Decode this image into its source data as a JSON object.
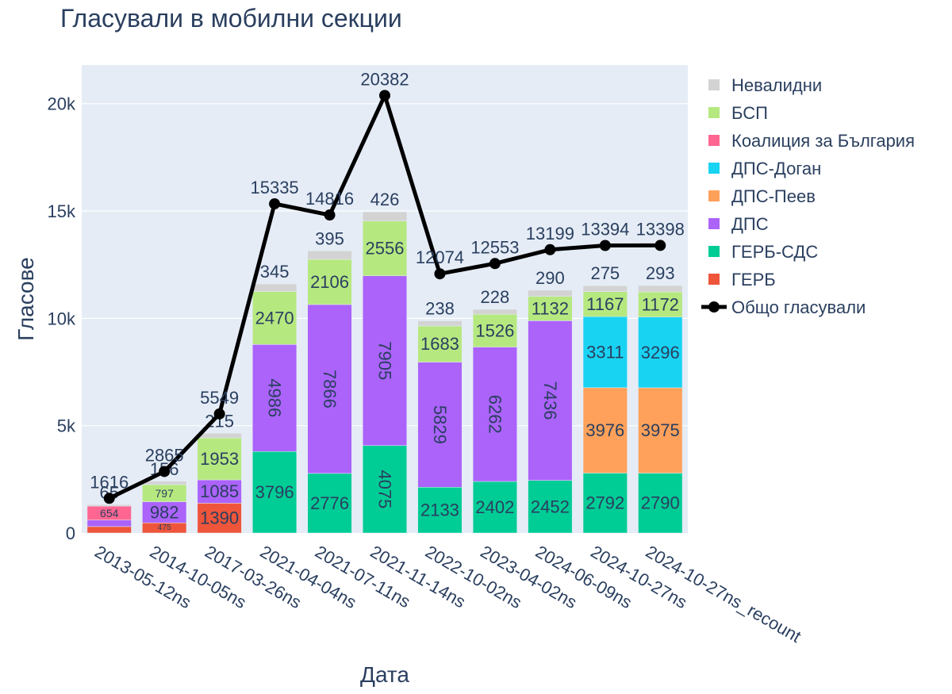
{
  "chart_data": {
    "type": "bar",
    "barmode": "stack",
    "title": "Гласували в мобилни секции",
    "xlabel": "Дата",
    "ylabel": "Гласове",
    "ylim": [
      0,
      21800
    ],
    "yticks": [
      0,
      5000,
      10000,
      15000,
      20000
    ],
    "ytick_labels": [
      "0",
      "5k",
      "10k",
      "15k",
      "20k"
    ],
    "grid": true,
    "legend_position": "right",
    "categories": [
      "2013-05-12ns",
      "2014-10-05ns",
      "2017-03-26ns",
      "2021-04-04ns",
      "2021-07-11ns",
      "2021-11-14ns",
      "2022-10-02ns",
      "2023-04-02ns",
      "2024-06-09ns",
      "2024-10-27ns",
      "2024-10-27ns_recount"
    ],
    "series": [
      {
        "name": "ГЕРБ",
        "color": "#ef553b",
        "values": [
          300,
          475,
          1390,
          0,
          0,
          0,
          0,
          0,
          0,
          0,
          0
        ],
        "labels": [
          "",
          "475",
          "1390",
          "",
          "",
          "",
          "",
          "",
          "",
          "",
          ""
        ]
      },
      {
        "name": "ГЕРБ-СДС",
        "color": "#00cc96",
        "values": [
          0,
          0,
          0,
          3796,
          2776,
          4075,
          2133,
          2402,
          2452,
          2792,
          2790
        ],
        "labels": [
          "",
          "",
          "",
          "3796",
          "2776",
          "4075",
          "2133",
          "2402",
          "2452",
          "2792",
          "2790"
        ]
      },
      {
        "name": "ДПС",
        "color": "#ab63fa",
        "values": [
          300,
          982,
          1085,
          4986,
          7866,
          7905,
          5829,
          6262,
          7436,
          0,
          0
        ],
        "labels": [
          "",
          "982",
          "1085",
          "4986",
          "7866",
          "7905",
          "5829",
          "6262",
          "7436",
          "",
          ""
        ]
      },
      {
        "name": "ДПС-Пеев",
        "color": "#ffa15a",
        "values": [
          0,
          0,
          0,
          0,
          0,
          0,
          0,
          0,
          0,
          3976,
          3975
        ],
        "labels": [
          "",
          "",
          "",
          "",
          "",
          "",
          "",
          "",
          "",
          "3976",
          "3975"
        ]
      },
      {
        "name": "ДПС-Доган",
        "color": "#19d3f3",
        "values": [
          0,
          0,
          0,
          0,
          0,
          0,
          0,
          0,
          0,
          3311,
          3296
        ],
        "labels": [
          "",
          "",
          "",
          "",
          "",
          "",
          "",
          "",
          "",
          "3311",
          "3296"
        ]
      },
      {
        "name": "Коалиция за България",
        "color": "#ff6692",
        "values": [
          654,
          0,
          0,
          0,
          0,
          0,
          0,
          0,
          0,
          0,
          0
        ],
        "labels": [
          "654",
          "",
          "",
          "",
          "",
          "",
          "",
          "",
          "",
          "",
          ""
        ]
      },
      {
        "name": "БСП",
        "color": "#b6e880",
        "values": [
          0,
          797,
          1953,
          2470,
          2106,
          2556,
          1683,
          1526,
          1132,
          1167,
          1172
        ],
        "labels": [
          "",
          "797",
          "1953",
          "2470",
          "2106",
          "2556",
          "1683",
          "1526",
          "1132",
          "1167",
          "1172"
        ]
      },
      {
        "name": "Невалидни",
        "color": "#d3d3d3",
        "values": [
          65,
          156,
          215,
          345,
          395,
          426,
          238,
          228,
          290,
          275,
          293
        ],
        "labels": [
          "65",
          "156",
          "215",
          "345",
          "395",
          "426",
          "238",
          "228",
          "290",
          "275",
          "293"
        ]
      }
    ],
    "line": {
      "name": "Общо гласували",
      "color": "#000000",
      "values": [
        1616,
        2865,
        5549,
        15335,
        14816,
        20382,
        12074,
        12553,
        13199,
        13394,
        13398
      ]
    },
    "legend_order": [
      "Невалидни",
      "БСП",
      "Коалиция за България",
      "ДПС-Доган",
      "ДПС-Пеев",
      "ДПС",
      "ГЕРБ-СДС",
      "ГЕРБ",
      "Общо гласували"
    ]
  }
}
